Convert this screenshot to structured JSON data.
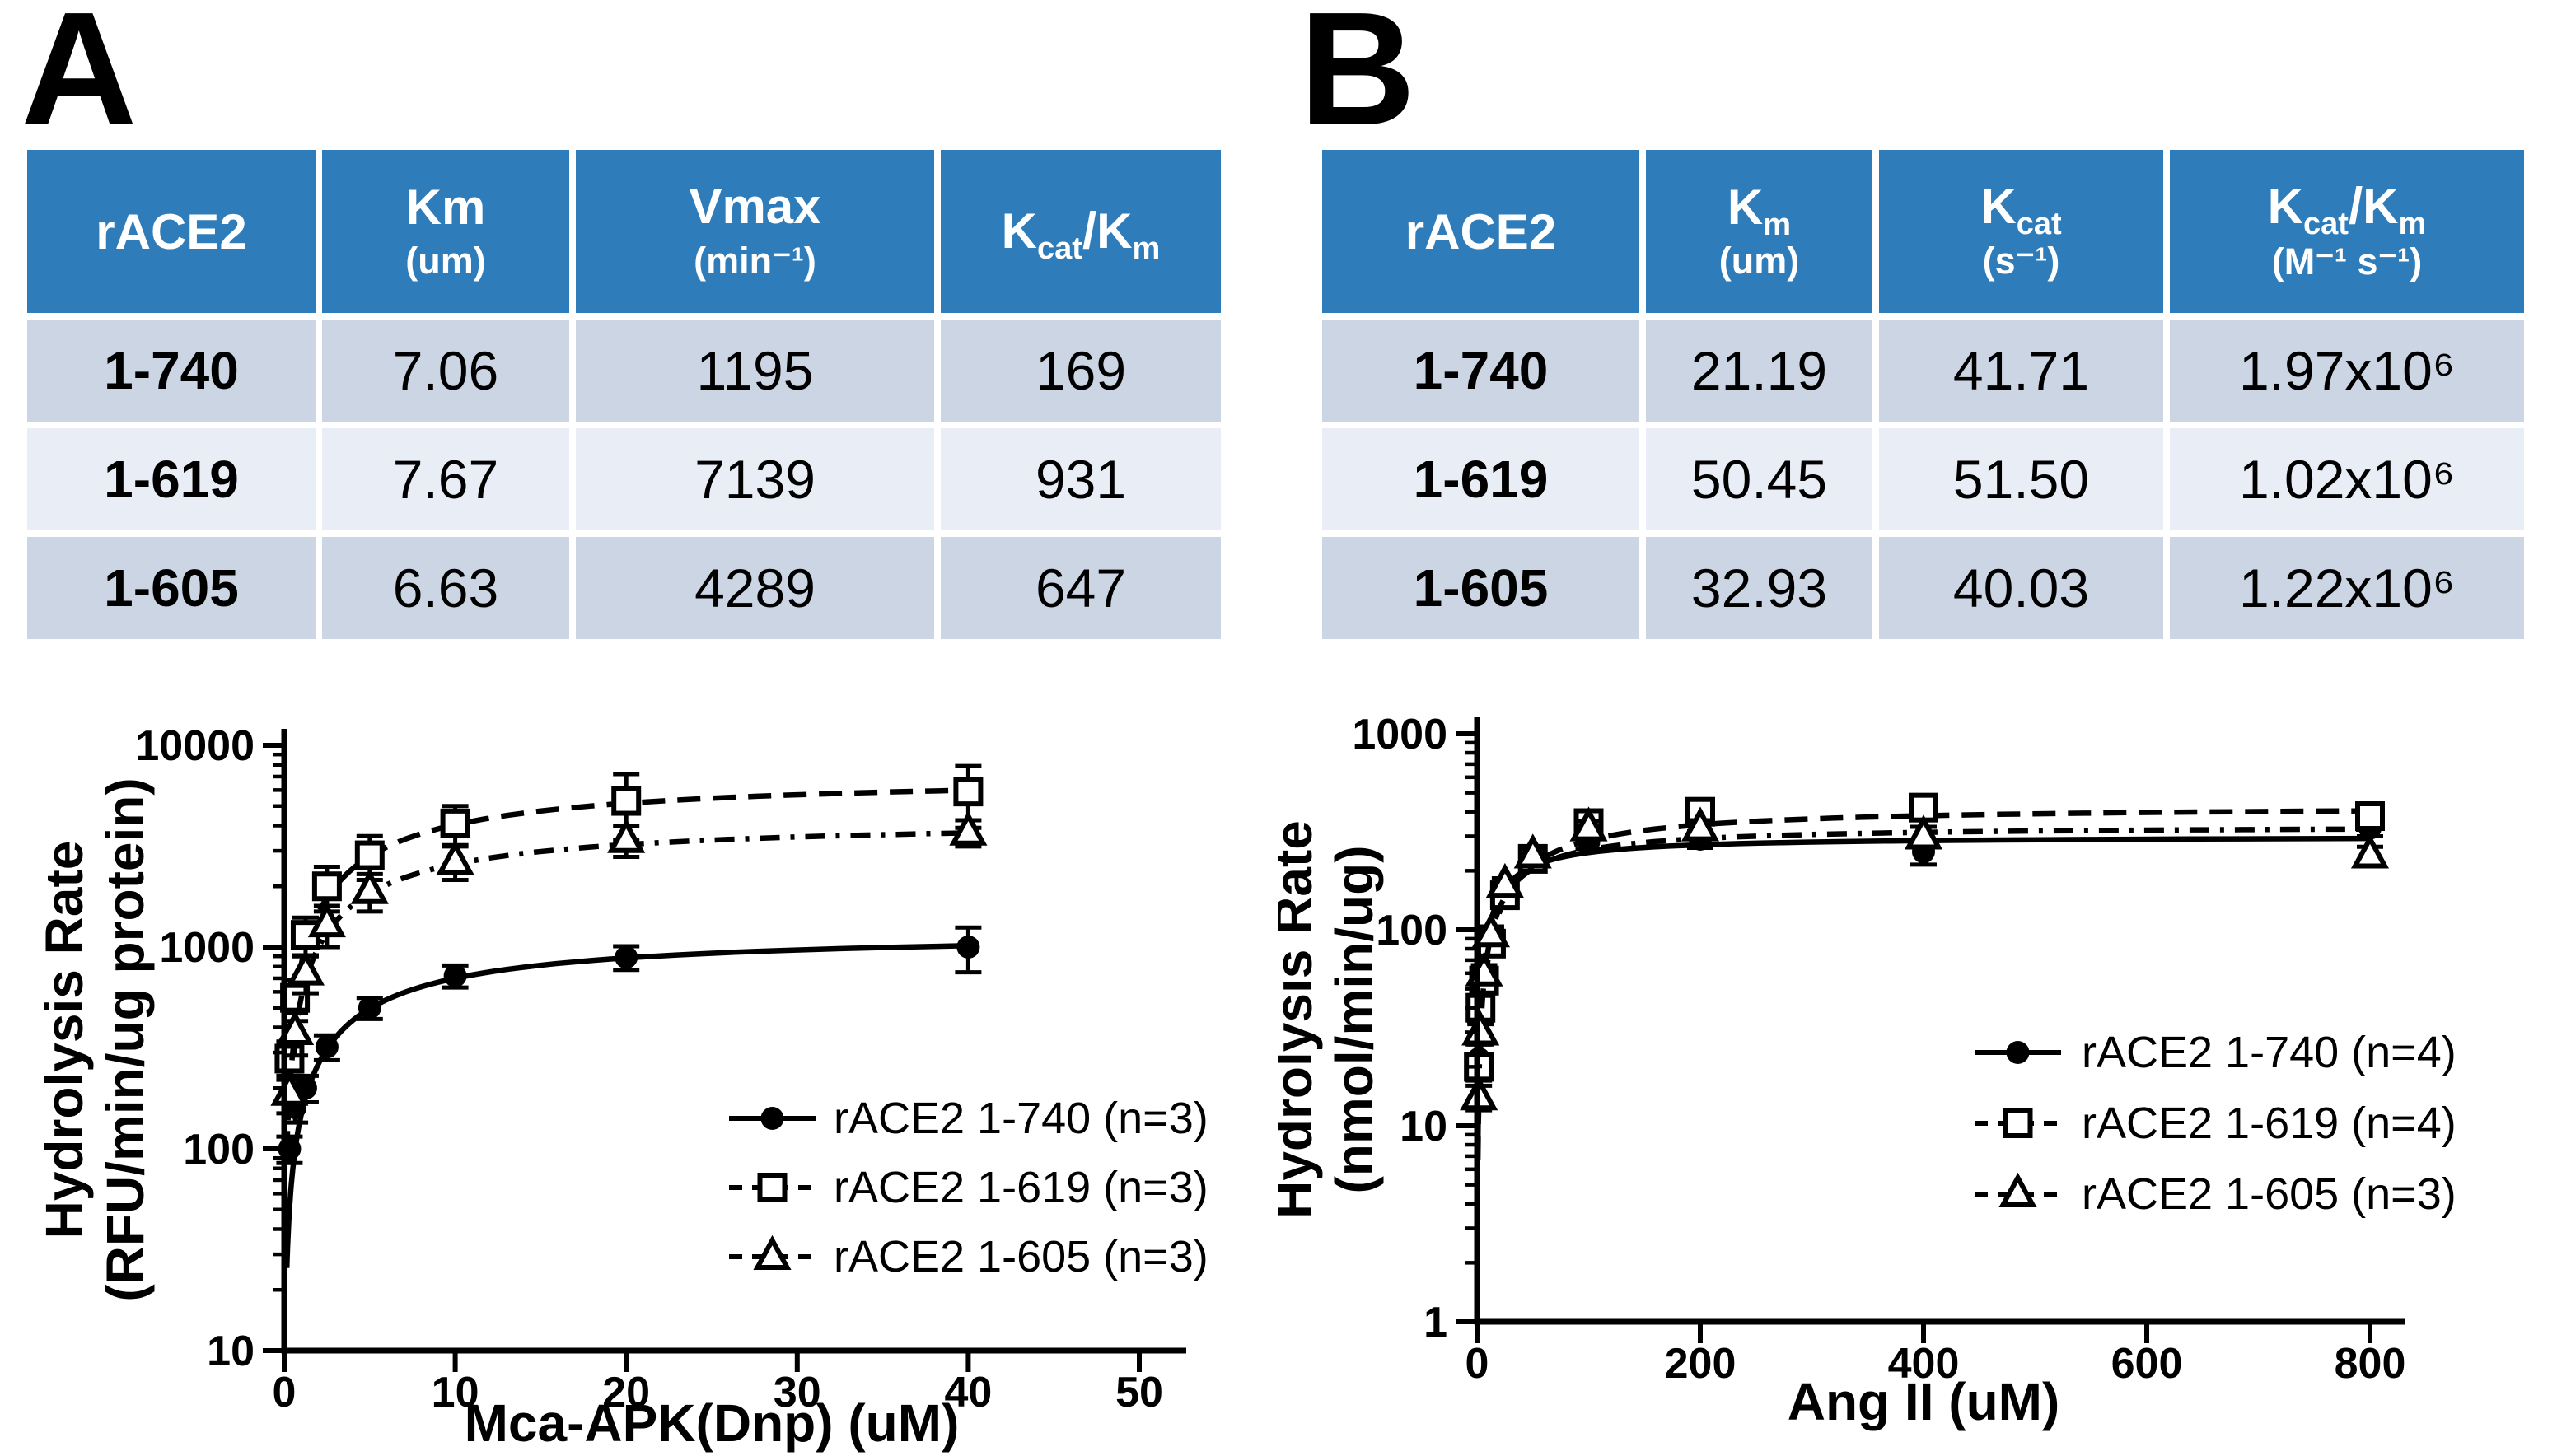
{
  "colors": {
    "header_blue": "#2E7CB9",
    "row_dark": "#CCD5E4",
    "row_light": "#E9EDF5",
    "ink": "#000000"
  },
  "panelA": {
    "label": "A",
    "table": {
      "headers": [
        {
          "main": "rACE2"
        },
        {
          "main": "Km",
          "unit": "(um)"
        },
        {
          "main": "Vmax",
          "unit": "(min⁻¹)"
        },
        {
          "k1": "K",
          "sub1": "cat",
          "sep": "/",
          "k2": "K",
          "sub2": "m"
        }
      ],
      "rows": [
        {
          "name": "1-740",
          "values": [
            "7.06",
            "1195",
            "169"
          ]
        },
        {
          "name": "1-619",
          "values": [
            "7.67",
            "7139",
            "931"
          ]
        },
        {
          "name": "1-605",
          "values": [
            "6.63",
            "4289",
            "647"
          ]
        }
      ]
    }
  },
  "panelB": {
    "label": "B",
    "table": {
      "headers": [
        {
          "main": "rACE2"
        },
        {
          "k1": "K",
          "sub1": "m",
          "unit": "(um)"
        },
        {
          "k1": "K",
          "sub1": "cat",
          "unit": "(s⁻¹)"
        },
        {
          "k1": "K",
          "sub1": "cat",
          "sep": "/",
          "k2": "K",
          "sub2": "m",
          "unit": "(M⁻¹ s⁻¹)"
        }
      ],
      "rows": [
        {
          "name": "1-740",
          "values": [
            "21.19",
            "41.71",
            "1.97x10⁶"
          ]
        },
        {
          "name": "1-619",
          "values": [
            "50.45",
            "51.50",
            "1.02x10⁶"
          ]
        },
        {
          "name": "1-605",
          "values": [
            "32.93",
            "40.03",
            "1.22x10⁶"
          ]
        }
      ]
    }
  },
  "chart_data": [
    {
      "type": "scatter",
      "title": "",
      "xlabel": "Mca-APK(Dnp) (uM)",
      "ylabel_lines": [
        "Hydrolysis Rate",
        "(RFU/min/ug protein)"
      ],
      "x_scale": "linear",
      "y_scale": "log",
      "xlim": [
        0,
        50
      ],
      "ylim": [
        10,
        10000
      ],
      "x_ticks": [
        0,
        10,
        20,
        30,
        40,
        50
      ],
      "y_ticks": [
        10,
        100,
        1000,
        10000
      ],
      "y_minor_ticks": true,
      "grid": false,
      "legend_position": "inside-lower-right",
      "series": [
        {
          "name": "rACE2 1-740 (n=3)",
          "marker": "filled-circle",
          "line": "solid",
          "fit": {
            "km": 7.06,
            "vmax": 1195
          },
          "x": [
            0.31,
            0.63,
            1.25,
            2.5,
            5,
            10,
            20,
            40
          ],
          "y": [
            100,
            160,
            200,
            320,
            500,
            720,
            890,
            1000
          ],
          "err": [
            15,
            25,
            30,
            45,
            60,
            90,
            120,
            250
          ]
        },
        {
          "name": "rACE2 1-619 (n=3)",
          "marker": "open-square",
          "line": "dashed",
          "fit": {
            "km": 7.67,
            "vmax": 7139
          },
          "x": [
            0.31,
            0.63,
            1.25,
            2.5,
            5,
            10,
            20,
            40
          ],
          "y": [
            280,
            560,
            1150,
            2000,
            2850,
            4100,
            5300,
            5900
          ],
          "err": [
            60,
            130,
            250,
            500,
            700,
            900,
            1900,
            2000
          ]
        },
        {
          "name": "rACE2 1-605 (n=3)",
          "marker": "open-triangle",
          "line": "dashdot",
          "fit": {
            "km": 6.63,
            "vmax": 4289
          },
          "x": [
            0.31,
            0.63,
            1.25,
            2.5,
            5,
            10,
            20,
            40
          ],
          "y": [
            190,
            380,
            750,
            1300,
            1900,
            2650,
            3400,
            3700
          ],
          "err": [
            40,
            90,
            160,
            300,
            400,
            500,
            600,
            550
          ]
        }
      ]
    },
    {
      "type": "scatter",
      "title": "",
      "xlabel": "Ang II (uM)",
      "ylabel_lines": [
        "Hydrolysis Rate",
        "(nmol/min/ug)"
      ],
      "x_scale": "linear",
      "y_scale": "log",
      "xlim": [
        0,
        800
      ],
      "ylim": [
        1,
        1000
      ],
      "x_ticks": [
        0,
        200,
        400,
        600,
        800
      ],
      "y_ticks": [
        1,
        10,
        100,
        1000
      ],
      "y_minor_ticks": true,
      "grid": false,
      "legend_position": "inside-right",
      "series": [
        {
          "name": "rACE2 1-740 (n=4)",
          "marker": "filled-circle",
          "line": "solid",
          "fit": {
            "km": 21.19,
            "vmax": 300
          },
          "x": [
            1.6,
            3.1,
            6.3,
            12.5,
            25,
            50,
            100,
            200,
            400,
            800
          ],
          "y": [
            22,
            38,
            55,
            90,
            160,
            230,
            280,
            290,
            250,
            330
          ],
          "err": [
            4,
            5,
            6,
            10,
            14,
            18,
            22,
            28,
            35,
            30
          ]
        },
        {
          "name": "rACE2 1-619 (n=4)",
          "marker": "open-square",
          "line": "dashed",
          "fit": {
            "km": 50.45,
            "vmax": 430
          },
          "x": [
            1.6,
            3.1,
            6.3,
            12.5,
            25,
            50,
            100,
            200,
            400,
            800
          ],
          "y": [
            20,
            40,
            55,
            85,
            150,
            230,
            350,
            400,
            420,
            380
          ],
          "err": [
            3,
            5,
            6,
            9,
            13,
            18,
            28,
            35,
            40,
            38
          ]
        },
        {
          "name": "rACE2 1-605 (n=3)",
          "marker": "open-triangle",
          "line": "dashdot",
          "fit": {
            "km": 32.93,
            "vmax": 340
          },
          "x": [
            1.6,
            3.1,
            6.3,
            12.5,
            25,
            50,
            100,
            200,
            400,
            800
          ],
          "y": [
            14,
            30,
            60,
            95,
            170,
            240,
            330,
            330,
            300,
            240
          ],
          "err": [
            2,
            4,
            6,
            9,
            13,
            18,
            28,
            32,
            35,
            25
          ]
        }
      ]
    }
  ]
}
